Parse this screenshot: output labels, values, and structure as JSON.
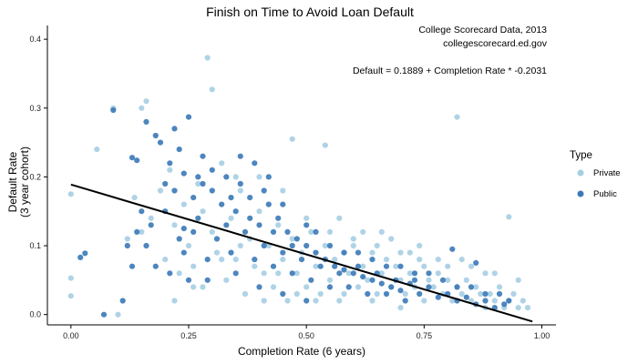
{
  "chart_data": {
    "type": "scatter",
    "title": "Finish on Time to Avoid Loan Default",
    "xlabel": "Completion Rate (6 years)",
    "ylabel_line1": "Default Rate",
    "ylabel_line2": "(3 year cohort)",
    "annotations": [
      "College Scorecard Data, 2013",
      "collegescorecard.ed.gov",
      "Default = 0.1889 + Completion Rate * -0.2031"
    ],
    "xlim": [
      -0.05,
      1.03
    ],
    "ylim": [
      -0.015,
      0.42
    ],
    "x_ticks": [
      0,
      0.25,
      0.5,
      0.75,
      1.0
    ],
    "x_tick_labels": [
      "0.00",
      "0.25",
      "0.50",
      "0.75",
      "1.00"
    ],
    "y_ticks": [
      0,
      0.1,
      0.2,
      0.3,
      0.4
    ],
    "y_tick_labels": [
      "0.0",
      "0.1",
      "0.2",
      "0.3",
      "0.4"
    ],
    "legend_title": "Type",
    "legend_position": "right",
    "grid": false,
    "series": [
      {
        "name": "Private",
        "color": "#a6cee3",
        "points": [
          [
            0.0,
            0.175
          ],
          [
            0.0,
            0.053
          ],
          [
            0.0,
            0.027
          ],
          [
            0.055,
            0.24
          ],
          [
            0.09,
            0.3
          ],
          [
            0.1,
            0.0
          ],
          [
            0.135,
            0.17
          ],
          [
            0.15,
            0.3
          ],
          [
            0.16,
            0.31
          ],
          [
            0.29,
            0.373
          ],
          [
            0.3,
            0.327
          ],
          [
            0.47,
            0.255
          ],
          [
            0.54,
            0.246
          ],
          [
            0.82,
            0.287
          ],
          [
            0.93,
            0.142
          ],
          [
            0.12,
            0.11
          ],
          [
            0.15,
            0.12
          ],
          [
            0.17,
            0.14
          ],
          [
            0.19,
            0.18
          ],
          [
            0.2,
            0.08
          ],
          [
            0.21,
            0.21
          ],
          [
            0.22,
            0.13
          ],
          [
            0.23,
            0.06
          ],
          [
            0.24,
            0.16
          ],
          [
            0.26,
            0.07
          ],
          [
            0.27,
            0.19
          ],
          [
            0.28,
            0.04
          ],
          [
            0.3,
            0.12
          ],
          [
            0.31,
            0.09
          ],
          [
            0.32,
            0.22
          ],
          [
            0.33,
            0.05
          ],
          [
            0.34,
            0.14
          ],
          [
            0.35,
            0.08
          ],
          [
            0.36,
            0.18
          ],
          [
            0.37,
            0.03
          ],
          [
            0.38,
            0.11
          ],
          [
            0.39,
            0.07
          ],
          [
            0.4,
            0.15
          ],
          [
            0.41,
            0.06
          ],
          [
            0.42,
            0.1
          ],
          [
            0.43,
            0.04
          ],
          [
            0.44,
            0.13
          ],
          [
            0.45,
            0.08
          ],
          [
            0.46,
            0.02
          ],
          [
            0.47,
            0.11
          ],
          [
            0.48,
            0.06
          ],
          [
            0.49,
            0.09
          ],
          [
            0.5,
            0.04
          ],
          [
            0.51,
            0.12
          ],
          [
            0.52,
            0.07
          ],
          [
            0.53,
            0.03
          ],
          [
            0.54,
            0.1
          ],
          [
            0.55,
            0.05
          ],
          [
            0.56,
            0.08
          ],
          [
            0.57,
            0.02
          ],
          [
            0.58,
            0.09
          ],
          [
            0.59,
            0.06
          ],
          [
            0.6,
            0.11
          ],
          [
            0.61,
            0.04
          ],
          [
            0.62,
            0.07
          ],
          [
            0.63,
            0.05
          ],
          [
            0.64,
            0.09
          ],
          [
            0.65,
            0.03
          ],
          [
            0.66,
            0.06
          ],
          [
            0.67,
            0.08
          ],
          [
            0.68,
            0.04
          ],
          [
            0.69,
            0.07
          ],
          [
            0.7,
            0.05
          ],
          [
            0.71,
            0.03
          ],
          [
            0.72,
            0.06
          ],
          [
            0.73,
            0.04
          ],
          [
            0.74,
            0.08
          ],
          [
            0.75,
            0.02
          ],
          [
            0.76,
            0.05
          ],
          [
            0.77,
            0.04
          ],
          [
            0.78,
            0.06
          ],
          [
            0.79,
            0.03
          ],
          [
            0.8,
            0.05
          ],
          [
            0.81,
            0.02
          ],
          [
            0.82,
            0.04
          ],
          [
            0.83,
            0.03
          ],
          [
            0.84,
            0.05
          ],
          [
            0.85,
            0.02
          ],
          [
            0.86,
            0.04
          ],
          [
            0.87,
            0.03
          ],
          [
            0.88,
            0.01
          ],
          [
            0.89,
            0.03
          ],
          [
            0.9,
            0.02
          ],
          [
            0.91,
            0.04
          ],
          [
            0.92,
            0.01
          ],
          [
            0.93,
            0.02
          ],
          [
            0.94,
            0.03
          ],
          [
            0.95,
            0.01
          ],
          [
            0.96,
            0.02
          ],
          [
            0.97,
            0.01
          ],
          [
            0.35,
            0.2
          ],
          [
            0.4,
            0.2
          ],
          [
            0.45,
            0.18
          ],
          [
            0.5,
            0.14
          ],
          [
            0.55,
            0.12
          ],
          [
            0.6,
            0.1
          ],
          [
            0.65,
            0.1
          ],
          [
            0.7,
            0.09
          ],
          [
            0.75,
            0.07
          ],
          [
            0.8,
            0.07
          ],
          [
            0.57,
            0.14
          ],
          [
            0.62,
            0.12
          ],
          [
            0.68,
            0.11
          ],
          [
            0.72,
            0.09
          ],
          [
            0.78,
            0.08
          ],
          [
            0.25,
            0.1
          ],
          [
            0.28,
            0.15
          ],
          [
            0.32,
            0.08
          ],
          [
            0.36,
            0.1
          ],
          [
            0.44,
            0.06
          ],
          [
            0.48,
            0.03
          ],
          [
            0.52,
            0.02
          ],
          [
            0.58,
            0.03
          ],
          [
            0.64,
            0.02
          ],
          [
            0.7,
            0.01
          ],
          [
            0.22,
            0.02
          ],
          [
            0.26,
            0.04
          ],
          [
            0.41,
            0.02
          ],
          [
            0.66,
            0.12
          ],
          [
            0.74,
            0.1
          ],
          [
            0.85,
            0.07
          ],
          [
            0.9,
            0.06
          ],
          [
            0.95,
            0.05
          ],
          [
            0.88,
            0.06
          ],
          [
            0.83,
            0.08
          ]
        ]
      },
      {
        "name": "Public",
        "color": "#3a79b7",
        "points": [
          [
            0.02,
            0.083
          ],
          [
            0.03,
            0.089
          ],
          [
            0.07,
            0.0
          ],
          [
            0.09,
            0.297
          ],
          [
            0.13,
            0.228
          ],
          [
            0.14,
            0.224
          ],
          [
            0.15,
            0.15
          ],
          [
            0.16,
            0.28
          ],
          [
            0.17,
            0.13
          ],
          [
            0.18,
            0.26
          ],
          [
            0.19,
            0.25
          ],
          [
            0.2,
            0.19
          ],
          [
            0.21,
            0.22
          ],
          [
            0.22,
            0.27
          ],
          [
            0.23,
            0.24
          ],
          [
            0.24,
            0.205
          ],
          [
            0.25,
            0.287
          ],
          [
            0.26,
            0.17
          ],
          [
            0.27,
            0.2
          ],
          [
            0.28,
            0.23
          ],
          [
            0.3,
            0.18
          ],
          [
            0.32,
            0.16
          ],
          [
            0.33,
            0.2
          ],
          [
            0.35,
            0.15
          ],
          [
            0.36,
            0.23
          ],
          [
            0.38,
            0.17
          ],
          [
            0.4,
            0.13
          ],
          [
            0.42,
            0.16
          ],
          [
            0.44,
            0.14
          ],
          [
            0.46,
            0.12
          ],
          [
            0.48,
            0.11
          ],
          [
            0.5,
            0.1
          ],
          [
            0.52,
            0.09
          ],
          [
            0.54,
            0.08
          ],
          [
            0.56,
            0.07
          ],
          [
            0.58,
            0.065
          ],
          [
            0.6,
            0.06
          ],
          [
            0.62,
            0.055
          ],
          [
            0.64,
            0.05
          ],
          [
            0.66,
            0.045
          ],
          [
            0.68,
            0.04
          ],
          [
            0.7,
            0.035
          ],
          [
            0.72,
            0.045
          ],
          [
            0.74,
            0.03
          ],
          [
            0.76,
            0.04
          ],
          [
            0.78,
            0.025
          ],
          [
            0.8,
            0.03
          ],
          [
            0.82,
            0.02
          ],
          [
            0.84,
            0.025
          ],
          [
            0.86,
            0.015
          ],
          [
            0.88,
            0.02
          ],
          [
            0.9,
            0.01
          ],
          [
            0.92,
            0.015
          ],
          [
            0.11,
            0.02
          ],
          [
            0.13,
            0.07
          ],
          [
            0.21,
            0.06
          ],
          [
            0.24,
            0.09
          ],
          [
            0.26,
            0.12
          ],
          [
            0.29,
            0.08
          ],
          [
            0.31,
            0.11
          ],
          [
            0.34,
            0.09
          ],
          [
            0.37,
            0.12
          ],
          [
            0.39,
            0.08
          ],
          [
            0.41,
            0.1
          ],
          [
            0.43,
            0.07
          ],
          [
            0.45,
            0.09
          ],
          [
            0.47,
            0.06
          ],
          [
            0.49,
            0.08
          ],
          [
            0.51,
            0.05
          ],
          [
            0.53,
            0.07
          ],
          [
            0.55,
            0.04
          ],
          [
            0.57,
            0.06
          ],
          [
            0.59,
            0.04
          ],
          [
            0.61,
            0.07
          ],
          [
            0.63,
            0.03
          ],
          [
            0.65,
            0.06
          ],
          [
            0.67,
            0.03
          ],
          [
            0.69,
            0.05
          ],
          [
            0.71,
            0.02
          ],
          [
            0.73,
            0.05
          ],
          [
            0.2,
            0.15
          ],
          [
            0.22,
            0.18
          ],
          [
            0.27,
            0.14
          ],
          [
            0.3,
            0.21
          ],
          [
            0.33,
            0.13
          ],
          [
            0.36,
            0.19
          ],
          [
            0.38,
            0.14
          ],
          [
            0.41,
            0.18
          ],
          [
            0.43,
            0.12
          ],
          [
            0.45,
            0.16
          ],
          [
            0.47,
            0.1
          ],
          [
            0.5,
            0.13
          ],
          [
            0.52,
            0.12
          ],
          [
            0.55,
            0.1
          ],
          [
            0.58,
            0.09
          ],
          [
            0.61,
            0.09
          ],
          [
            0.64,
            0.08
          ],
          [
            0.67,
            0.07
          ],
          [
            0.7,
            0.07
          ],
          [
            0.73,
            0.06
          ],
          [
            0.76,
            0.06
          ],
          [
            0.79,
            0.05
          ],
          [
            0.82,
            0.04
          ],
          [
            0.85,
            0.04
          ],
          [
            0.88,
            0.03
          ],
          [
            0.91,
            0.03
          ],
          [
            0.35,
            0.06
          ],
          [
            0.4,
            0.04
          ],
          [
            0.45,
            0.03
          ],
          [
            0.5,
            0.02
          ],
          [
            0.24,
            0.125
          ],
          [
            0.28,
            0.19
          ],
          [
            0.34,
            0.17
          ],
          [
            0.39,
            0.22
          ],
          [
            0.42,
            0.2
          ],
          [
            0.18,
            0.07
          ],
          [
            0.23,
            0.11
          ],
          [
            0.25,
            0.05
          ],
          [
            0.29,
            0.05
          ],
          [
            0.81,
            0.095
          ],
          [
            0.86,
            0.075
          ],
          [
            0.16,
            0.1
          ],
          [
            0.14,
            0.12
          ],
          [
            0.12,
            0.1
          ],
          [
            0.93,
            0.02
          ]
        ]
      }
    ],
    "trendline": {
      "intercept": 0.1889,
      "slope": -0.2031,
      "x_range": [
        0.0,
        0.98
      ],
      "color": "#000000"
    }
  }
}
